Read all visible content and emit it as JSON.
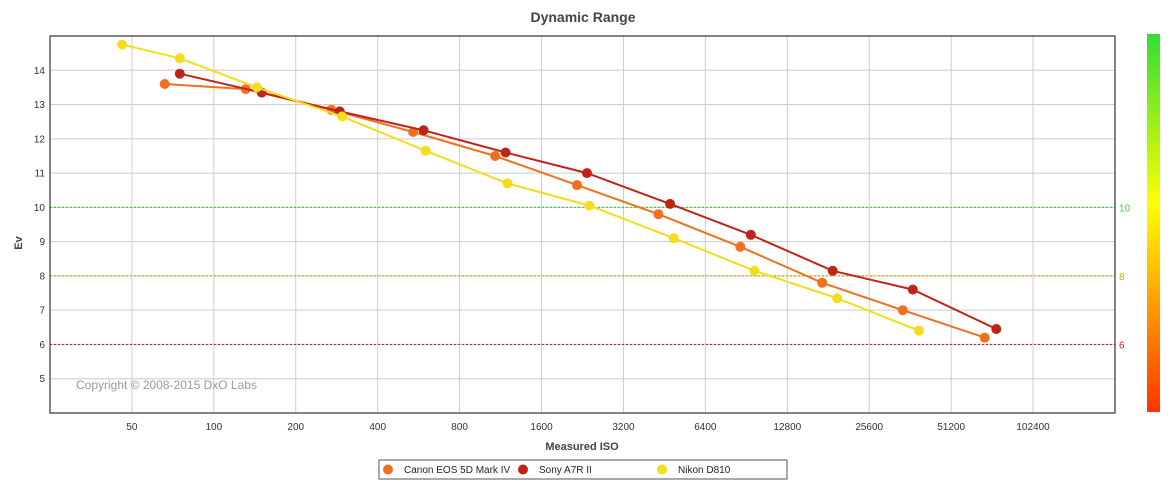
{
  "chart_data": {
    "type": "line",
    "title": "Dynamic Range",
    "xlabel": "Measured ISO",
    "ylabel": "Ev",
    "x_scale": "log2",
    "x_ticks": [
      50,
      100,
      200,
      400,
      800,
      1600,
      3200,
      6400,
      12800,
      25600,
      51200,
      102400
    ],
    "x_range": [
      25,
      204800
    ],
    "y_ticks": [
      5,
      6,
      7,
      8,
      9,
      10,
      11,
      12,
      13,
      14
    ],
    "y_range": [
      4,
      15
    ],
    "grid": true,
    "legend_position": "bottom",
    "copyright": "Copyright © 2008-2015 DxO Labs",
    "reference_lines": [
      {
        "y": 10,
        "label": "10",
        "color": "#44cc44"
      },
      {
        "y": 8,
        "label": "8",
        "color": "#ccaa00"
      },
      {
        "y": 6,
        "label": "6",
        "color": "#cc2222"
      }
    ],
    "colorbar": {
      "colors": [
        "#ff3300",
        "#ffff00",
        "#33dd33"
      ]
    },
    "series": [
      {
        "name": "Canon EOS 5D Mark IV",
        "color": "#f07020",
        "x": [
          66,
          131,
          270,
          540,
          1080,
          2160,
          4300,
          8600,
          17200,
          34000,
          68000
        ],
        "y": [
          13.6,
          13.45,
          12.85,
          12.2,
          11.5,
          10.65,
          9.8,
          8.85,
          7.8,
          7.0,
          6.2
        ]
      },
      {
        "name": "Sony A7R II",
        "color": "#c02418",
        "x": [
          75,
          150,
          290,
          590,
          1180,
          2350,
          4750,
          9400,
          18800,
          37000,
          75000
        ],
        "y": [
          13.9,
          13.35,
          12.8,
          12.25,
          11.6,
          11.0,
          10.1,
          9.2,
          8.15,
          7.6,
          6.45
        ]
      },
      {
        "name": "Nikon D810",
        "color": "#f5dc1c",
        "x": [
          46,
          75,
          144,
          296,
          600,
          1200,
          2400,
          4900,
          9700,
          19500,
          39000
        ],
        "y": [
          14.75,
          14.35,
          13.5,
          12.65,
          11.65,
          10.7,
          10.05,
          9.1,
          8.15,
          7.35,
          6.4
        ]
      }
    ]
  }
}
